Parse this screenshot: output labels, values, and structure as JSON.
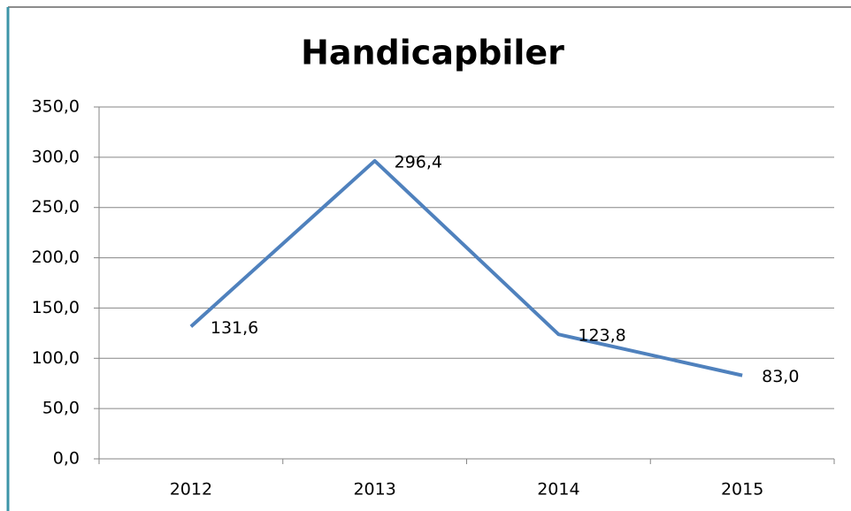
{
  "chart_data": {
    "type": "line",
    "title": "Handicapbiler",
    "categories": [
      "2012",
      "2013",
      "2014",
      "2015"
    ],
    "series": [
      {
        "name": "Handicapbiler",
        "color": "#4f81bd",
        "values": [
          131.6,
          296.4,
          123.8,
          83.0
        ],
        "value_labels": [
          "131,6",
          "296,4",
          "123,8",
          "83,0"
        ]
      }
    ],
    "ylim": [
      0,
      350
    ],
    "yticks": [
      {
        "value": 0,
        "label": "0,0"
      },
      {
        "value": 50,
        "label": "50,0"
      },
      {
        "value": 100,
        "label": "100,0"
      },
      {
        "value": 150,
        "label": "150,0"
      },
      {
        "value": 200,
        "label": "200,0"
      },
      {
        "value": 250,
        "label": "250,0"
      },
      {
        "value": 300,
        "label": "300,0"
      },
      {
        "value": 350,
        "label": "350,0"
      }
    ],
    "grid": true
  }
}
